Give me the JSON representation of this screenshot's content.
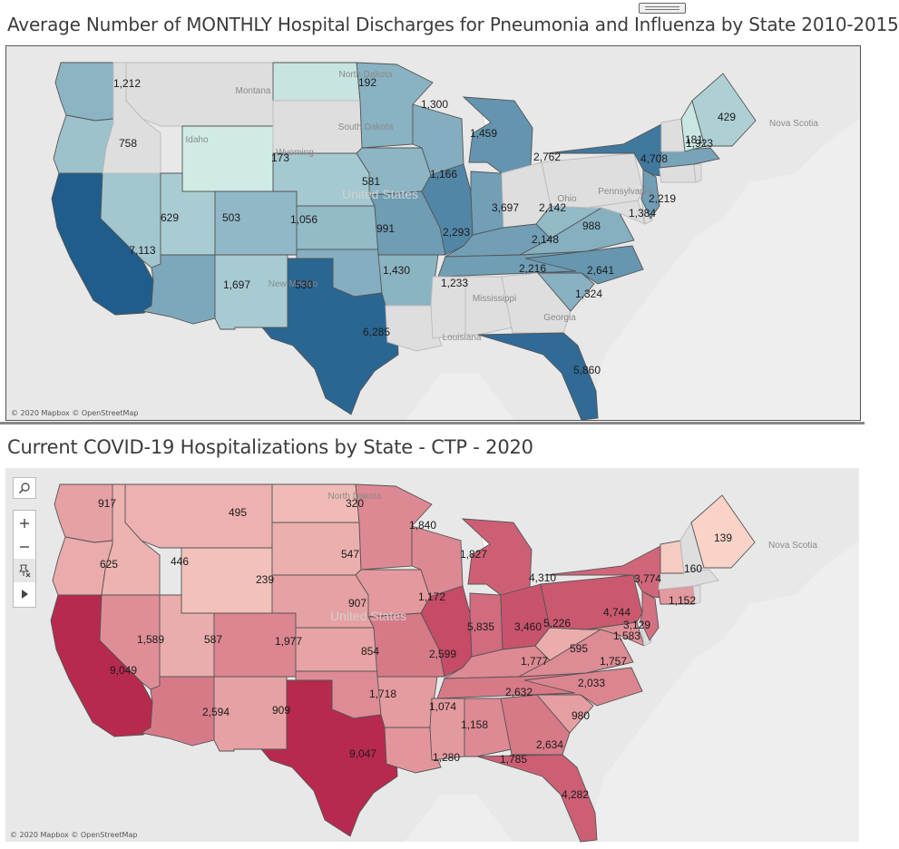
{
  "panels": [
    {
      "title": "Average Number of MONTHLY Hospital Discharges for Pneumonia and Influenza by State 2010-2015",
      "credit": "© 2020 Mapbox © OpenStreetMap",
      "color_scale": [
        "#d0ebe6",
        "#1f5d8c"
      ],
      "states": [
        {
          "state": "Washington",
          "value": "1,212"
        },
        {
          "state": "Oregon",
          "value": "758"
        },
        {
          "state": "California",
          "value": "7,113"
        },
        {
          "state": "Nevada",
          "value": "629"
        },
        {
          "state": "Utah",
          "value": "503"
        },
        {
          "state": "Arizona",
          "value": "1,697"
        },
        {
          "state": "New Mexico",
          "value": "530"
        },
        {
          "state": "Colorado",
          "value": "1,056"
        },
        {
          "state": "Wyoming",
          "value": "173"
        },
        {
          "state": "North Dakota",
          "value": "192"
        },
        {
          "state": "Nebraska",
          "value": "581"
        },
        {
          "state": "Kansas",
          "value": "991"
        },
        {
          "state": "Oklahoma",
          "value": "1,430"
        },
        {
          "state": "Texas",
          "value": "6,285"
        },
        {
          "state": "Minnesota",
          "value": "1,300"
        },
        {
          "state": "Iowa",
          "value": "1,166"
        },
        {
          "state": "Missouri",
          "value": "2,293"
        },
        {
          "state": "Arkansas",
          "value": "1,233"
        },
        {
          "state": "Wisconsin",
          "value": "1,459"
        },
        {
          "state": "Illinois",
          "value": "3,697"
        },
        {
          "state": "Michigan",
          "value": "2,762"
        },
        {
          "state": "Indiana",
          "value": "2,142"
        },
        {
          "state": "Kentucky",
          "value": "2,148"
        },
        {
          "state": "Tennessee",
          "value": "2,216"
        },
        {
          "state": "West Virginia",
          "value": "988"
        },
        {
          "state": "Virginia",
          "value": "1,384"
        },
        {
          "state": "North Carolina",
          "value": "2,641"
        },
        {
          "state": "South Carolina",
          "value": "1,324"
        },
        {
          "state": "Florida",
          "value": "5,860"
        },
        {
          "state": "New York",
          "value": "4,708"
        },
        {
          "state": "New Jersey",
          "value": "2,219"
        },
        {
          "state": "New Hampshire",
          "value": "181"
        },
        {
          "state": "Massachusetts",
          "value": "1,923"
        },
        {
          "state": "Maine",
          "value": "429"
        }
      ],
      "geo_labels": [
        "Montana",
        "Idaho",
        "North Dakota",
        "South Dakota",
        "United States",
        "Ohio",
        "Pennsylvania",
        "Mississippi",
        "Georgia",
        "Louisiana",
        "Nova Scotia",
        "Wyoming",
        "New Mexico"
      ]
    },
    {
      "title": "Current COVID-19 Hospitalizations by State - CTP - 2020",
      "credit": "© 2020 Mapbox © OpenStreetMap",
      "color_scale": [
        "#f9d3c8",
        "#b8294e"
      ],
      "states": [
        {
          "state": "Washington",
          "value": "917"
        },
        {
          "state": "Oregon",
          "value": "625"
        },
        {
          "state": "California",
          "value": "9,049"
        },
        {
          "state": "Nevada",
          "value": "1,589"
        },
        {
          "state": "Idaho",
          "value": "446"
        },
        {
          "state": "Montana",
          "value": "495"
        },
        {
          "state": "Utah",
          "value": "587"
        },
        {
          "state": "Arizona",
          "value": "2,594"
        },
        {
          "state": "Wyoming",
          "value": "239"
        },
        {
          "state": "Colorado",
          "value": "1,977"
        },
        {
          "state": "New Mexico",
          "value": "909"
        },
        {
          "state": "North Dakota",
          "value": "320"
        },
        {
          "state": "South Dakota",
          "value": "547"
        },
        {
          "state": "Nebraska",
          "value": "907"
        },
        {
          "state": "Kansas",
          "value": "854"
        },
        {
          "state": "Oklahoma",
          "value": "1,718"
        },
        {
          "state": "Texas",
          "value": "9,047"
        },
        {
          "state": "Minnesota",
          "value": "1,840"
        },
        {
          "state": "Iowa",
          "value": "1,172"
        },
        {
          "state": "Missouri",
          "value": "2,599"
        },
        {
          "state": "Arkansas",
          "value": "1,074"
        },
        {
          "state": "Louisiana",
          "value": "1,280"
        },
        {
          "state": "Wisconsin",
          "value": "1,827"
        },
        {
          "state": "Illinois",
          "value": "5,835"
        },
        {
          "state": "Michigan",
          "value": "4,310"
        },
        {
          "state": "Indiana",
          "value": "3,460"
        },
        {
          "state": "Ohio",
          "value": "5,226"
        },
        {
          "state": "Kentucky",
          "value": "1,777"
        },
        {
          "state": "Tennessee",
          "value": "2,632"
        },
        {
          "state": "Mississippi",
          "value": "1,158"
        },
        {
          "state": "Alabama",
          "value": "1,785"
        },
        {
          "state": "Georgia",
          "value": "2,634"
        },
        {
          "state": "Florida",
          "value": "4,282"
        },
        {
          "state": "South Carolina",
          "value": "980"
        },
        {
          "state": "North Carolina",
          "value": "2,033"
        },
        {
          "state": "Virginia",
          "value": "1,757"
        },
        {
          "state": "West Virginia",
          "value": "595"
        },
        {
          "state": "Maryland",
          "value": "1,583"
        },
        {
          "state": "Pennsylvania",
          "value": "4,744"
        },
        {
          "state": "New Jersey",
          "value": "3,129"
        },
        {
          "state": "New York",
          "value": "3,774"
        },
        {
          "state": "Connecticut",
          "value": "1,152"
        },
        {
          "state": "Vermont",
          "value": "160"
        },
        {
          "state": "Maine",
          "value": "139"
        }
      ],
      "geo_labels": [
        "North Dakota",
        "United States",
        "Nova Scotia"
      ]
    }
  ],
  "toolbar": {
    "search_icon": "search-icon",
    "zoom_in_icon": "plus-icon",
    "zoom_out_icon": "minus-icon",
    "pin_icon": "unpin-icon",
    "expand_icon": "play-icon"
  }
}
